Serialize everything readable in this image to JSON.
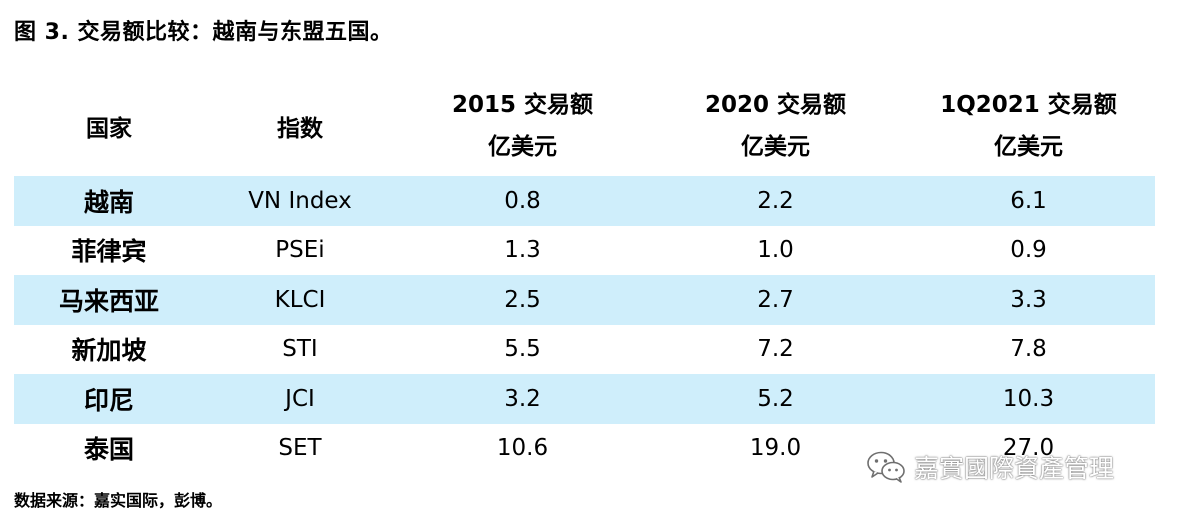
{
  "title": "图 3. 交易额比较：越南与东盟五国。",
  "table": {
    "headers": {
      "country": "国家",
      "index": "指数",
      "col2015_l1": "2015 交易额",
      "col2015_l2": "亿美元",
      "col2020_l1": "2020 交易额",
      "col2020_l2": "亿美元",
      "col1q2021_l1": "1Q2021 交易额",
      "col1q2021_l2": "亿美元"
    },
    "rows": [
      {
        "country": "越南",
        "index": "VN Index",
        "v2015": "0.8",
        "v2020": "2.2",
        "v1q2021": "6.1"
      },
      {
        "country": "菲律宾",
        "index": "PSEi",
        "v2015": "1.3",
        "v2020": "1.0",
        "v1q2021": "0.9"
      },
      {
        "country": "马来西亚",
        "index": "KLCI",
        "v2015": "2.5",
        "v2020": "2.7",
        "v1q2021": "3.3"
      },
      {
        "country": "新加坡",
        "index": "STI",
        "v2015": "5.5",
        "v2020": "7.2",
        "v1q2021": "7.8"
      },
      {
        "country": "印尼",
        "index": "JCI",
        "v2015": "3.2",
        "v2020": "5.2",
        "v1q2021": "10.3"
      },
      {
        "country": "泰国",
        "index": "SET",
        "v2015": "10.6",
        "v2020": "19.0",
        "v1q2021": "27.0"
      }
    ]
  },
  "footnote": "数据来源：嘉实国际，彭博。",
  "watermark": {
    "text": "嘉實國際資產管理",
    "icon": "wechat-icon"
  },
  "colors": {
    "row_shade": "#cfeefb",
    "text": "#000000"
  }
}
